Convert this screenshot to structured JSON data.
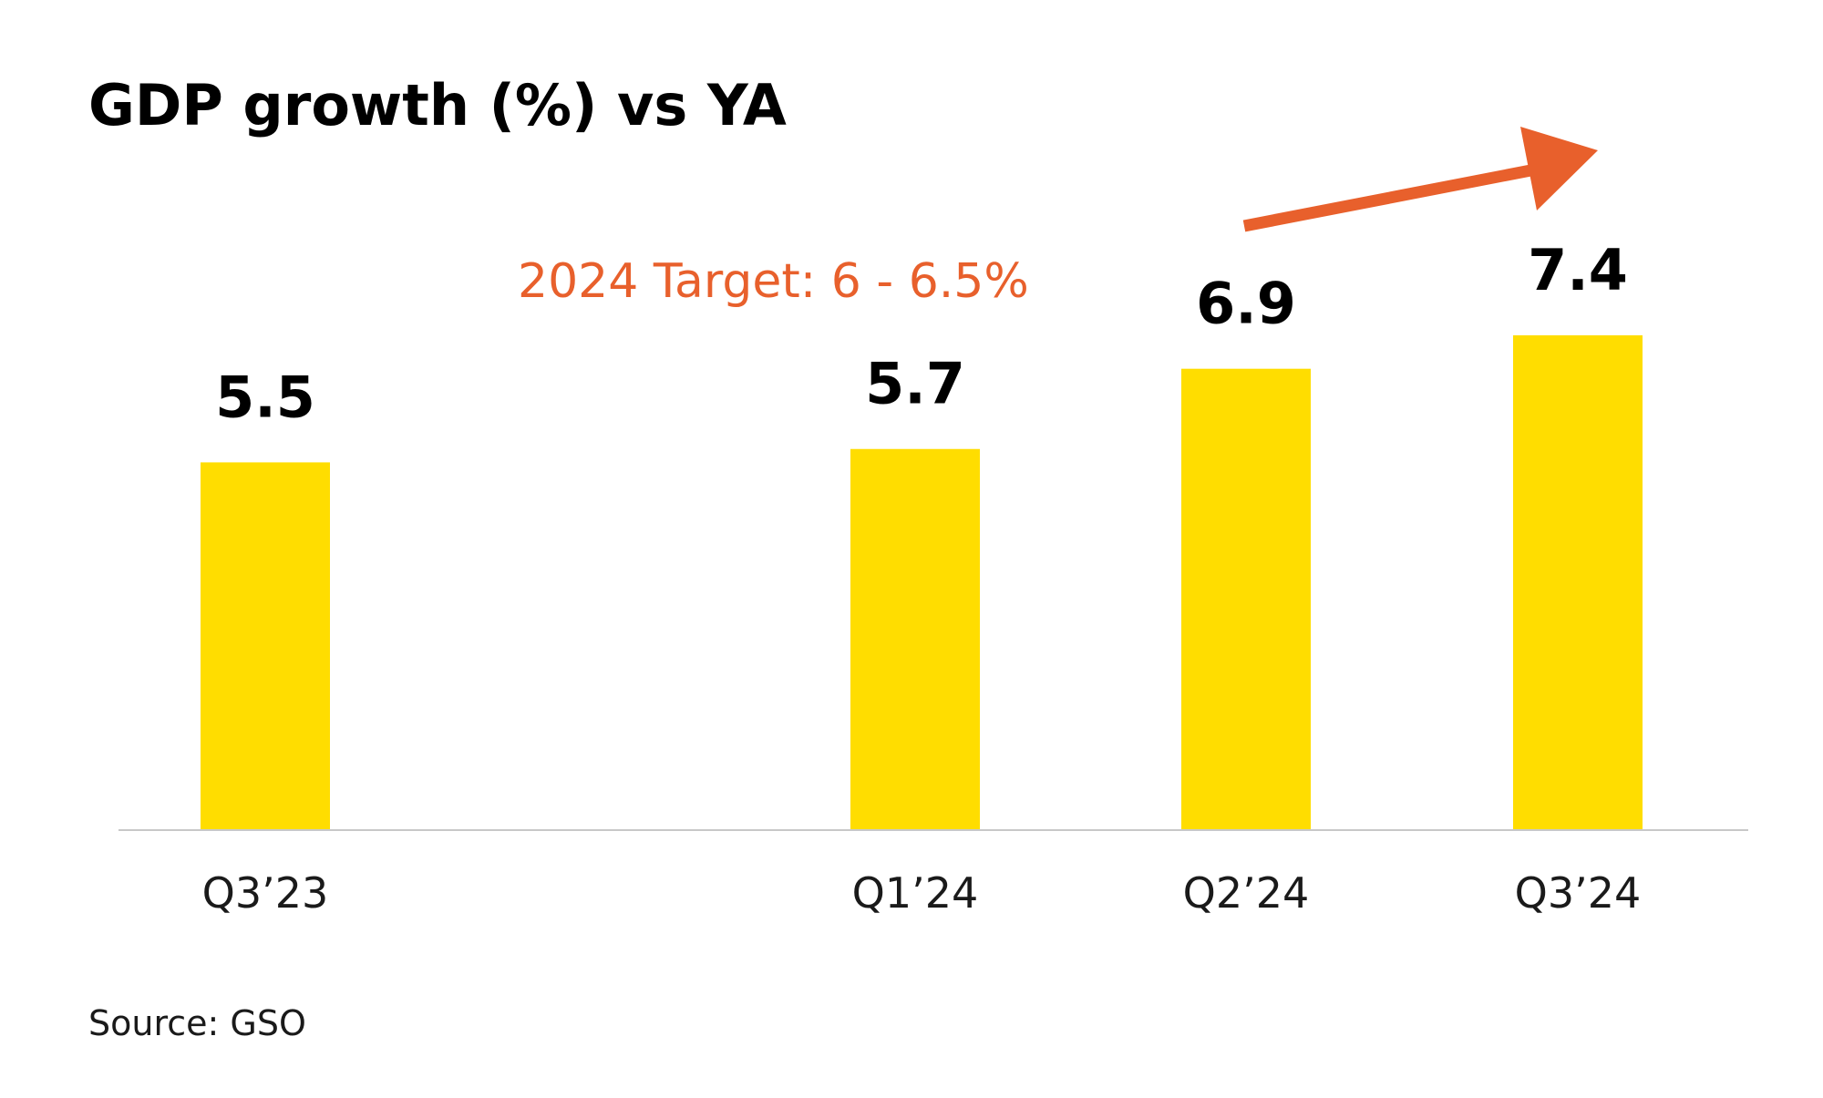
{
  "chart_data": {
    "type": "bar",
    "title": "GDP growth (%) vs YA",
    "categories": [
      "Q3’23",
      "Q1’24",
      "Q2’24",
      "Q3’24"
    ],
    "values": [
      5.5,
      5.7,
      6.9,
      7.4
    ],
    "value_labels": [
      "5.5",
      "5.7",
      "6.9",
      "7.4"
    ],
    "annotation": "2024 Target: 6 - 6.5%",
    "source": "Source: GSO",
    "xlabel": "",
    "ylabel": "",
    "ylim": [
      0,
      7.4
    ],
    "grid": false,
    "legend": "none",
    "colors": {
      "bar": "#FFDD00",
      "annotation": "#E8602C",
      "trend_arrow": "#E8602C",
      "baseline": "#c8c8c8",
      "text": "#000000"
    }
  }
}
